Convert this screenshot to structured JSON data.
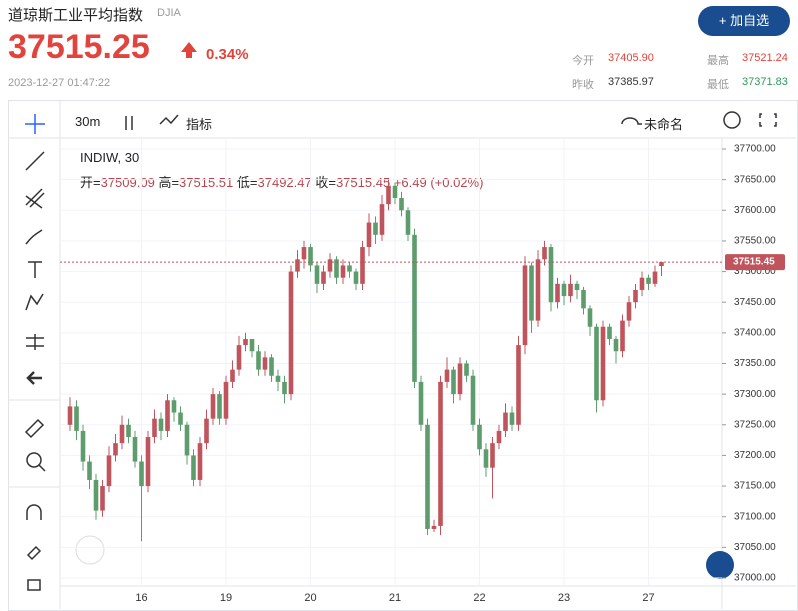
{
  "header": {
    "title": "道琼斯工业平均指数",
    "symbol": "DJIA",
    "price": "37515.25",
    "change": "0.34%",
    "time": "2023-12-27 01:47:22",
    "button": "+ 加自选",
    "stats": [
      {
        "label": "今开",
        "value": "37405.90"
      },
      {
        "label": "最高",
        "value": "37521.24"
      },
      {
        "label": "昨收",
        "value": "37385.97"
      },
      {
        "label": "最低",
        "value": "37371.83"
      }
    ]
  },
  "toolbar": {
    "interval": "30m",
    "indicator": "指标",
    "layout": "未命名"
  },
  "chart_data": {
    "type": "candlestick",
    "legend": {
      "name": "INDIW, 30",
      "labels": [
        "开=",
        "高=",
        "低=",
        "收="
      ],
      "change": "+6.49 (+0.02%)"
    },
    "up_color": "#c0545c",
    "down_color": "#5d9c6c",
    "categories": [
      null,
      null,
      null,
      null,
      null,
      null,
      null,
      null,
      null,
      null,
      null,
      "16",
      null,
      null,
      null,
      null,
      null,
      null,
      null,
      null,
      null,
      null,
      null,
      null,
      "19",
      null,
      null,
      null,
      null,
      null,
      null,
      null,
      null,
      null,
      null,
      null,
      null,
      "20",
      null,
      null,
      null,
      null,
      null,
      null,
      null,
      null,
      null,
      null,
      null,
      null,
      "21",
      null,
      null,
      null,
      null,
      null,
      null,
      null,
      null,
      null,
      null,
      null,
      null,
      "22",
      null,
      null,
      null,
      null,
      null,
      null,
      null,
      null,
      null,
      null,
      null,
      null,
      "23",
      null,
      null,
      null,
      null,
      null,
      null,
      null,
      null,
      null,
      null,
      null,
      null,
      "27",
      null,
      null
    ],
    "open": [
      37250,
      37280,
      37240,
      37190,
      37160,
      37110,
      37150,
      37200,
      37220,
      37250,
      37230,
      37190,
      37150,
      37230,
      37260,
      37240,
      37290,
      37270,
      37250,
      37200,
      37160,
      37220,
      37260,
      37300,
      37260,
      37320,
      37340,
      37380,
      37390,
      37370,
      37340,
      37360,
      37330,
      37320,
      37300,
      37500,
      37520,
      37540,
      37510,
      37480,
      37500,
      37520,
      37490,
      37510,
      37500,
      37480,
      37540,
      37580,
      37560,
      37610,
      37640,
      37620,
      37600,
      37560,
      37320,
      37250,
      37080,
      37085,
      37320,
      37340,
      37300,
      37350,
      37330,
      37250,
      37210,
      37180,
      37220,
      37240,
      37270,
      37250,
      37380,
      37510,
      37420,
      37520,
      37540,
      37450,
      37480,
      37460,
      37480,
      37470,
      37440,
      37410,
      37290,
      37410,
      37390,
      37370,
      37420,
      37450,
      37470,
      37490,
      37480,
      37509.09
    ],
    "close": [
      37280,
      37240,
      37190,
      37160,
      37110,
      37150,
      37200,
      37220,
      37250,
      37230,
      37190,
      37150,
      37230,
      37260,
      37240,
      37290,
      37270,
      37250,
      37200,
      37160,
      37220,
      37260,
      37300,
      37260,
      37320,
      37340,
      37380,
      37390,
      37370,
      37340,
      37360,
      37330,
      37320,
      37300,
      37500,
      37520,
      37540,
      37510,
      37480,
      37500,
      37520,
      37490,
      37510,
      37500,
      37480,
      37540,
      37580,
      37560,
      37610,
      37640,
      37620,
      37600,
      37560,
      37320,
      37250,
      37080,
      37085,
      37320,
      37340,
      37300,
      37350,
      37330,
      37250,
      37210,
      37180,
      37220,
      37240,
      37270,
      37250,
      37380,
      37510,
      37420,
      37520,
      37540,
      37450,
      37480,
      37460,
      37480,
      37470,
      37440,
      37410,
      37290,
      37410,
      37390,
      37370,
      37420,
      37450,
      37470,
      37490,
      37480,
      37500,
      37515.45
    ],
    "high": [
      37295,
      37290,
      37250,
      37200,
      37170,
      37160,
      37215,
      37235,
      37265,
      37260,
      37240,
      37200,
      37240,
      37275,
      37270,
      37300,
      37295,
      37280,
      37255,
      37210,
      37230,
      37275,
      37310,
      37305,
      37330,
      37355,
      37395,
      37400,
      37390,
      37380,
      37370,
      37365,
      37340,
      37330,
      37510,
      37535,
      37550,
      37545,
      37515,
      37510,
      37530,
      37525,
      37520,
      37515,
      37505,
      37550,
      37595,
      37590,
      37625,
      37650,
      37645,
      37630,
      37605,
      37570,
      37330,
      37260,
      37095,
      37330,
      37360,
      37345,
      37360,
      37355,
      37340,
      37260,
      37220,
      37230,
      37250,
      37285,
      37280,
      37395,
      37525,
      37515,
      37535,
      37550,
      37545,
      37490,
      37485,
      37495,
      37485,
      37475,
      37445,
      37415,
      37420,
      37415,
      37395,
      37430,
      37460,
      37480,
      37500,
      37495,
      37510,
      37515.51
    ],
    "low": [
      37240,
      37225,
      37175,
      37145,
      37095,
      37100,
      37140,
      37190,
      37210,
      37220,
      37180,
      37060,
      37140,
      37220,
      37225,
      37230,
      37255,
      37240,
      37185,
      37150,
      37150,
      37210,
      37250,
      37250,
      37250,
      37310,
      37330,
      37370,
      37360,
      37330,
      37330,
      37320,
      37305,
      37285,
      37290,
      37490,
      37505,
      37500,
      37465,
      37470,
      37490,
      37480,
      37480,
      37490,
      37470,
      37470,
      37525,
      37545,
      37550,
      37600,
      37610,
      37590,
      37550,
      37310,
      37240,
      37070,
      37075,
      37070,
      37310,
      37285,
      37290,
      37320,
      37240,
      37200,
      37165,
      37130,
      37210,
      37230,
      37240,
      37240,
      37365,
      37400,
      37410,
      37510,
      37435,
      37440,
      37445,
      37450,
      37455,
      37430,
      37395,
      37270,
      37280,
      37380,
      37350,
      37360,
      37410,
      37440,
      37460,
      37470,
      37475,
      37492.47
    ],
    "ylim": [
      37000,
      37700
    ],
    "price_line": "37515.45",
    "yticks": [
      {
        "value": 37000,
        "label": "37000.00"
      },
      {
        "value": 37050,
        "label": "37050.00"
      },
      {
        "value": 37100,
        "label": "37100.00"
      },
      {
        "value": 37150,
        "label": "37150.00"
      },
      {
        "value": 37200,
        "label": "37200.00"
      },
      {
        "value": 37250,
        "label": "37250.00"
      },
      {
        "value": 37300,
        "label": "37300.00"
      },
      {
        "value": 37350,
        "label": "37350.00"
      },
      {
        "value": 37400,
        "label": "37400.00"
      },
      {
        "value": 37450,
        "label": "37450.00"
      },
      {
        "value": 37500,
        "label": "37500.00"
      },
      {
        "value": 37550,
        "label": "37550.00"
      },
      {
        "value": 37600,
        "label": "37600.00"
      },
      {
        "value": 37650,
        "label": "37650.00"
      },
      {
        "value": 37700,
        "label": "37700.00"
      }
    ],
    "grid": true
  }
}
